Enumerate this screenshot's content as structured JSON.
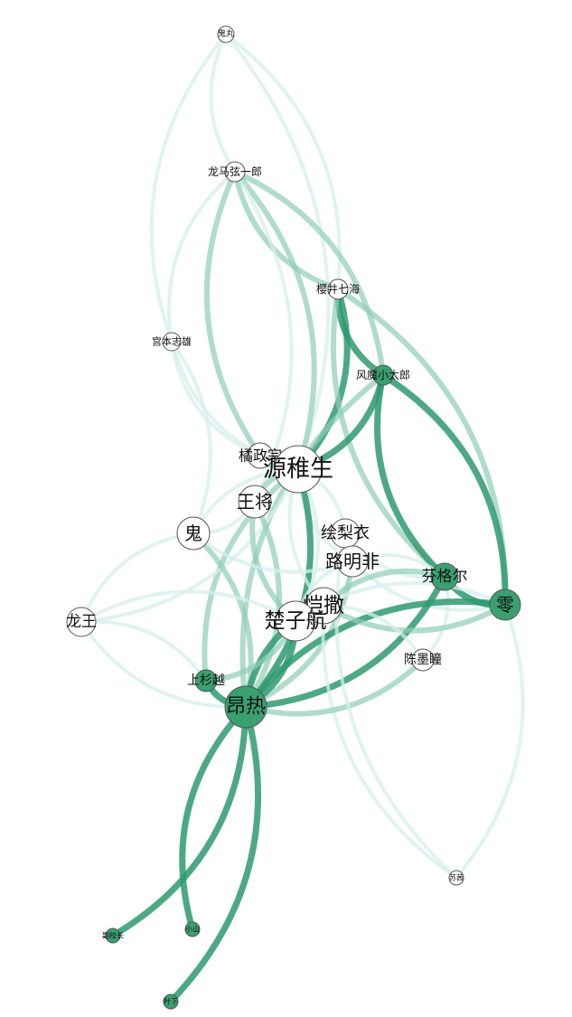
{
  "graph": {
    "type": "network",
    "colors": {
      "edge_light": "#d6efec",
      "edge_mid": "#8fcdb6",
      "edge_dark": "#2e9a6e",
      "node_fill_white": "#ffffff",
      "node_fill_green": "#3aa070"
    },
    "nodes": [
      {
        "id": "guiwan",
        "label": "鬼丸",
        "fill": "white"
      },
      {
        "id": "longma",
        "label": "龙马弦一郎",
        "fill": "white"
      },
      {
        "id": "yingjing",
        "label": "樱井七海",
        "fill": "white"
      },
      {
        "id": "gongben",
        "label": "宫本志雄",
        "fill": "white"
      },
      {
        "id": "fengmo",
        "label": "风魔小太郎",
        "fill": "green"
      },
      {
        "id": "juzheng",
        "label": "橘政宗",
        "fill": "white"
      },
      {
        "id": "yuanzhi",
        "label": "源稚生",
        "fill": "white"
      },
      {
        "id": "wangjiang",
        "label": "王将",
        "fill": "white"
      },
      {
        "id": "gui",
        "label": "鬼",
        "fill": "white"
      },
      {
        "id": "huili",
        "label": "绘梨衣",
        "fill": "white"
      },
      {
        "id": "luming",
        "label": "路明非",
        "fill": "white"
      },
      {
        "id": "fenge",
        "label": "芬格尔",
        "fill": "green"
      },
      {
        "id": "ling",
        "label": "零",
        "fill": "green"
      },
      {
        "id": "kaisa",
        "label": "恺撒",
        "fill": "white"
      },
      {
        "id": "chuzi",
        "label": "楚子航",
        "fill": "white"
      },
      {
        "id": "longwang",
        "label": "龙王",
        "fill": "white"
      },
      {
        "id": "chenmo",
        "label": "陈墨瞳",
        "fill": "white"
      },
      {
        "id": "shangshan",
        "label": "上杉越",
        "fill": "green"
      },
      {
        "id": "angre",
        "label": "昂热",
        "fill": "green"
      },
      {
        "id": "shuhe",
        "label": "苏茜",
        "fill": "white"
      },
      {
        "id": "fuzhen",
        "label": "副校长",
        "fill": "green"
      },
      {
        "id": "xiaoshan",
        "label": "小山",
        "fill": "green"
      },
      {
        "id": "yexia",
        "label": "叶下",
        "fill": "green"
      }
    ],
    "edges": [
      {
        "source": "guiwan",
        "target": "longma",
        "tone": "light"
      },
      {
        "source": "guiwan",
        "target": "yingjing",
        "tone": "light"
      },
      {
        "source": "guiwan",
        "target": "gongben",
        "tone": "light"
      },
      {
        "source": "guiwan",
        "target": "yuanzhi",
        "tone": "light"
      },
      {
        "source": "longma",
        "target": "yingjing",
        "tone": "mid"
      },
      {
        "source": "longma",
        "target": "fengmo",
        "tone": "mid"
      },
      {
        "source": "longma",
        "target": "gongben",
        "tone": "light"
      },
      {
        "source": "longma",
        "target": "yuanzhi",
        "tone": "mid"
      },
      {
        "source": "longma",
        "target": "juzheng",
        "tone": "mid"
      },
      {
        "source": "longma",
        "target": "wangjiang",
        "tone": "light"
      },
      {
        "source": "yingjing",
        "target": "fengmo",
        "tone": "dark"
      },
      {
        "source": "yingjing",
        "target": "yuanzhi",
        "tone": "dark"
      },
      {
        "source": "yingjing",
        "target": "fenge",
        "tone": "mid"
      },
      {
        "source": "yingjing",
        "target": "ling",
        "tone": "mid"
      },
      {
        "source": "gongben",
        "target": "yuanzhi",
        "tone": "light"
      },
      {
        "source": "gongben",
        "target": "gui",
        "tone": "light"
      },
      {
        "source": "gongben",
        "target": "juzheng",
        "tone": "light"
      },
      {
        "source": "fengmo",
        "target": "yuanzhi",
        "tone": "dark"
      },
      {
        "source": "fengmo",
        "target": "fenge",
        "tone": "dark"
      },
      {
        "source": "fengmo",
        "target": "ling",
        "tone": "dark"
      },
      {
        "source": "fengmo",
        "target": "angre",
        "tone": "mid"
      },
      {
        "source": "yuanzhi",
        "target": "juzheng",
        "tone": "mid"
      },
      {
        "source": "yuanzhi",
        "target": "wangjiang",
        "tone": "mid"
      },
      {
        "source": "yuanzhi",
        "target": "huili",
        "tone": "light"
      },
      {
        "source": "yuanzhi",
        "target": "luming",
        "tone": "light"
      },
      {
        "source": "yuanzhi",
        "target": "angre",
        "tone": "dark"
      },
      {
        "source": "yuanzhi",
        "target": "shangshan",
        "tone": "mid"
      },
      {
        "source": "yuanzhi",
        "target": "longwang",
        "tone": "light"
      },
      {
        "source": "yuanzhi",
        "target": "kaisa",
        "tone": "light"
      },
      {
        "source": "yuanzhi",
        "target": "chuzi",
        "tone": "light"
      },
      {
        "source": "yuanzhi",
        "target": "gui",
        "tone": "light"
      },
      {
        "source": "wangjiang",
        "target": "angre",
        "tone": "mid"
      },
      {
        "source": "wangjiang",
        "target": "chuzi",
        "tone": "mid"
      },
      {
        "source": "wangjiang",
        "target": "gui",
        "tone": "light"
      },
      {
        "source": "gui",
        "target": "longwang",
        "tone": "light"
      },
      {
        "source": "gui",
        "target": "angre",
        "tone": "mid"
      },
      {
        "source": "gui",
        "target": "luming",
        "tone": "light"
      },
      {
        "source": "huili",
        "target": "luming",
        "tone": "light"
      },
      {
        "source": "huili",
        "target": "fenge",
        "tone": "light"
      },
      {
        "source": "luming",
        "target": "fenge",
        "tone": "light"
      },
      {
        "source": "luming",
        "target": "ling",
        "tone": "light"
      },
      {
        "source": "luming",
        "target": "kaisa",
        "tone": "light"
      },
      {
        "source": "luming",
        "target": "chuzi",
        "tone": "light"
      },
      {
        "source": "luming",
        "target": "angre",
        "tone": "mid"
      },
      {
        "source": "fenge",
        "target": "ling",
        "tone": "dark"
      },
      {
        "source": "fenge",
        "target": "chenmo",
        "tone": "light"
      },
      {
        "source": "fenge",
        "target": "kaisa",
        "tone": "mid"
      },
      {
        "source": "fenge",
        "target": "angre",
        "tone": "dark"
      },
      {
        "source": "ling",
        "target": "angre",
        "tone": "dark"
      },
      {
        "source": "ling",
        "target": "kaisa",
        "tone": "mid"
      },
      {
        "source": "ling",
        "target": "chuzi",
        "tone": "light"
      },
      {
        "source": "kaisa",
        "target": "chuzi",
        "tone": "mid"
      },
      {
        "source": "kaisa",
        "target": "angre",
        "tone": "dark"
      },
      {
        "source": "kaisa",
        "target": "chenmo",
        "tone": "light"
      },
      {
        "source": "kaisa",
        "target": "shuhe",
        "tone": "light"
      },
      {
        "source": "chuzi",
        "target": "angre",
        "tone": "dark"
      },
      {
        "source": "chuzi",
        "target": "longwang",
        "tone": "light"
      },
      {
        "source": "chuzi",
        "target": "shangshan",
        "tone": "mid"
      },
      {
        "source": "longwang",
        "target": "angre",
        "tone": "light"
      },
      {
        "source": "longwang",
        "target": "shangshan",
        "tone": "light"
      },
      {
        "source": "shangshan",
        "target": "angre",
        "tone": "dark"
      },
      {
        "source": "angre",
        "target": "fuzhen",
        "tone": "dark"
      },
      {
        "source": "angre",
        "target": "xiaoshan",
        "tone": "dark"
      },
      {
        "source": "angre",
        "target": "yexia",
        "tone": "dark"
      },
      {
        "source": "angre",
        "target": "chenmo",
        "tone": "mid"
      },
      {
        "source": "shuhe",
        "target": "huili",
        "tone": "light"
      },
      {
        "source": "shuhe",
        "target": "ling",
        "tone": "light"
      }
    ]
  }
}
